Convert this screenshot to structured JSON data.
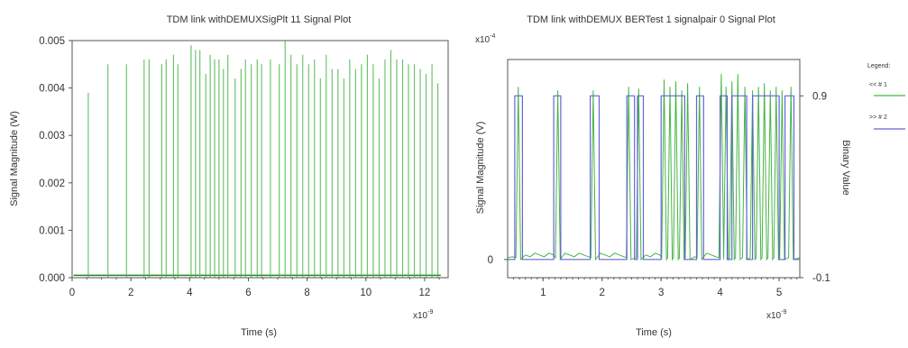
{
  "colors": {
    "series1": "#46b446",
    "series1_dark": "#1f8a1f",
    "series2": "#6464d8",
    "axis": "#555555"
  },
  "plot1": {
    "title": "TDM link withDEMUXSigPlt 11 Signal Plot",
    "xlabel": "Time (s)",
    "ylabel": "Signal Magnitude (W)",
    "x_exponent_base": "x10",
    "x_exponent_power": "-9"
  },
  "plot2": {
    "title": "TDM link withDEMUX BERTest 1 signalpair 0 Signal Plot",
    "xlabel": "Time (s)",
    "ylabel": "Signal Magnitude (V)",
    "y2label": "Binary Value",
    "x_exponent_base": "x10",
    "x_exponent_power": "-9",
    "y_exponent_base": "x10",
    "y_exponent_power": "-4"
  },
  "legend": {
    "title": "Legend:",
    "items": [
      {
        "label": "<< # 1",
        "color": "#46b446"
      },
      {
        "label": ">> # 2",
        "color": "#6464d8"
      }
    ]
  },
  "chart_data": [
    {
      "type": "line",
      "title": "TDM link withDEMUXSigPlt 11 Signal Plot",
      "xlabel": "Time (s)",
      "ylabel": "Signal Magnitude (W)",
      "xlim": [
        0,
        12.8
      ],
      "ylim": [
        0,
        0.005
      ],
      "x_ticks": [
        0,
        2,
        4,
        6,
        8,
        10,
        12
      ],
      "y_ticks": [
        0,
        0.001,
        0.002,
        0.003,
        0.004,
        0.005
      ],
      "y_tick_labels": [
        "0.000",
        "0.001",
        "0.002",
        "0.003",
        "0.004",
        "0.005"
      ],
      "x_unit_note": "x10^-9",
      "pulses": [
        {
          "x": 0.55,
          "y": 0.0039
        },
        {
          "x": 1.22,
          "y": 0.0045
        },
        {
          "x": 1.85,
          "y": 0.0045
        },
        {
          "x": 2.45,
          "y": 0.0046
        },
        {
          "x": 2.62,
          "y": 0.0046
        },
        {
          "x": 3.05,
          "y": 0.0045
        },
        {
          "x": 3.2,
          "y": 0.0046
        },
        {
          "x": 3.45,
          "y": 0.0047
        },
        {
          "x": 3.6,
          "y": 0.0045
        },
        {
          "x": 4.05,
          "y": 0.0049
        },
        {
          "x": 4.2,
          "y": 0.0048
        },
        {
          "x": 4.35,
          "y": 0.0048
        },
        {
          "x": 4.55,
          "y": 0.0043
        },
        {
          "x": 4.7,
          "y": 0.0047
        },
        {
          "x": 4.85,
          "y": 0.0046
        },
        {
          "x": 5.0,
          "y": 0.0046
        },
        {
          "x": 5.15,
          "y": 0.0044
        },
        {
          "x": 5.3,
          "y": 0.0047
        },
        {
          "x": 5.55,
          "y": 0.0042
        },
        {
          "x": 5.75,
          "y": 0.0044
        },
        {
          "x": 5.9,
          "y": 0.0046
        },
        {
          "x": 6.1,
          "y": 0.0045
        },
        {
          "x": 6.3,
          "y": 0.0046
        },
        {
          "x": 6.45,
          "y": 0.0045
        },
        {
          "x": 6.75,
          "y": 0.0046
        },
        {
          "x": 7.05,
          "y": 0.0045
        },
        {
          "x": 7.25,
          "y": 0.005
        },
        {
          "x": 7.45,
          "y": 0.0047
        },
        {
          "x": 7.65,
          "y": 0.0045
        },
        {
          "x": 7.85,
          "y": 0.0047
        },
        {
          "x": 8.05,
          "y": 0.0045
        },
        {
          "x": 8.25,
          "y": 0.0046
        },
        {
          "x": 8.45,
          "y": 0.0042
        },
        {
          "x": 8.65,
          "y": 0.0047
        },
        {
          "x": 8.85,
          "y": 0.0044
        },
        {
          "x": 9.05,
          "y": 0.0044
        },
        {
          "x": 9.25,
          "y": 0.0042
        },
        {
          "x": 9.45,
          "y": 0.0046
        },
        {
          "x": 9.65,
          "y": 0.0044
        },
        {
          "x": 9.85,
          "y": 0.0045
        },
        {
          "x": 10.05,
          "y": 0.0047
        },
        {
          "x": 10.25,
          "y": 0.0045
        },
        {
          "x": 10.45,
          "y": 0.0042
        },
        {
          "x": 10.65,
          "y": 0.0046
        },
        {
          "x": 10.85,
          "y": 0.0048
        },
        {
          "x": 11.05,
          "y": 0.0046
        },
        {
          "x": 11.25,
          "y": 0.0046
        },
        {
          "x": 11.45,
          "y": 0.0045
        },
        {
          "x": 11.65,
          "y": 0.0045
        },
        {
          "x": 11.85,
          "y": 0.0044
        },
        {
          "x": 12.05,
          "y": 0.0043
        },
        {
          "x": 12.25,
          "y": 0.0045
        },
        {
          "x": 12.45,
          "y": 0.0041
        }
      ]
    },
    {
      "type": "line",
      "title": "TDM link withDEMUX BERTest 1 signalpair 0 Signal Plot",
      "xlabel": "Time (s)",
      "ylabel": "Signal Magnitude (V)",
      "y2label": "Binary Value",
      "xlim": [
        0.4,
        5.35
      ],
      "ylim": [
        -0.1,
        1.1
      ],
      "x_ticks": [
        1,
        2,
        3,
        4,
        5
      ],
      "y_tick_labels_left": [
        {
          "value": 0,
          "label": "0"
        }
      ],
      "y_tick_labels_right": [
        {
          "value": 0.9,
          "label": "0.9"
        },
        {
          "value": -0.1,
          "label": "-0.1"
        }
      ],
      "x_unit_note": "x10^-9",
      "y_unit_note": "x10^-4",
      "series": [
        {
          "name": "<< # 1",
          "pulses": [
            {
              "x": 0.58,
              "y": 0.95
            },
            {
              "x": 1.25,
              "y": 0.93
            },
            {
              "x": 1.85,
              "y": 0.93
            },
            {
              "x": 2.45,
              "y": 0.95
            },
            {
              "x": 2.62,
              "y": 0.94
            },
            {
              "x": 3.05,
              "y": 0.99
            },
            {
              "x": 3.15,
              "y": 0.95
            },
            {
              "x": 3.25,
              "y": 0.98
            },
            {
              "x": 3.35,
              "y": 0.93
            },
            {
              "x": 3.45,
              "y": 0.97
            },
            {
              "x": 3.65,
              "y": 0.95
            },
            {
              "x": 4.02,
              "y": 1.02
            },
            {
              "x": 4.1,
              "y": 0.95
            },
            {
              "x": 4.2,
              "y": 0.98
            },
            {
              "x": 4.3,
              "y": 1.02
            },
            {
              "x": 4.42,
              "y": 0.95
            },
            {
              "x": 4.55,
              "y": 0.93
            },
            {
              "x": 4.65,
              "y": 0.95
            },
            {
              "x": 4.75,
              "y": 0.97
            },
            {
              "x": 4.85,
              "y": 0.93
            },
            {
              "x": 4.95,
              "y": 0.95
            },
            {
              "x": 5.05,
              "y": 0.93
            },
            {
              "x": 5.2,
              "y": 0.95
            }
          ]
        },
        {
          "name": ">> # 2",
          "segments": [
            [
              0.4,
              0
            ],
            [
              0.52,
              0
            ],
            [
              0.52,
              0.9
            ],
            [
              0.65,
              0.9
            ],
            [
              0.65,
              0
            ],
            [
              1.18,
              0
            ],
            [
              1.18,
              0.9
            ],
            [
              1.3,
              0.9
            ],
            [
              1.3,
              0
            ],
            [
              1.8,
              0
            ],
            [
              1.8,
              0.9
            ],
            [
              1.95,
              0.9
            ],
            [
              1.95,
              0
            ],
            [
              2.42,
              0
            ],
            [
              2.42,
              0.9
            ],
            [
              2.55,
              0.9
            ],
            [
              2.55,
              0
            ],
            [
              2.6,
              0
            ],
            [
              2.6,
              0.9
            ],
            [
              2.7,
              0.9
            ],
            [
              2.7,
              0
            ],
            [
              3.0,
              0
            ],
            [
              3.0,
              0.9
            ],
            [
              3.4,
              0.9
            ],
            [
              3.4,
              0
            ],
            [
              3.6,
              0
            ],
            [
              3.6,
              0.9
            ],
            [
              3.72,
              0.9
            ],
            [
              3.72,
              0
            ],
            [
              4.0,
              0
            ],
            [
              4.0,
              0.9
            ],
            [
              4.12,
              0.9
            ],
            [
              4.12,
              0
            ],
            [
              4.2,
              0
            ],
            [
              4.2,
              0.9
            ],
            [
              4.45,
              0.9
            ],
            [
              4.45,
              0
            ],
            [
              4.55,
              0
            ],
            [
              4.55,
              0.9
            ],
            [
              5.0,
              0.9
            ],
            [
              5.0,
              0
            ],
            [
              5.1,
              0
            ],
            [
              5.1,
              0.9
            ],
            [
              5.25,
              0.9
            ],
            [
              5.25,
              0
            ],
            [
              5.35,
              0
            ]
          ]
        }
      ]
    }
  ]
}
